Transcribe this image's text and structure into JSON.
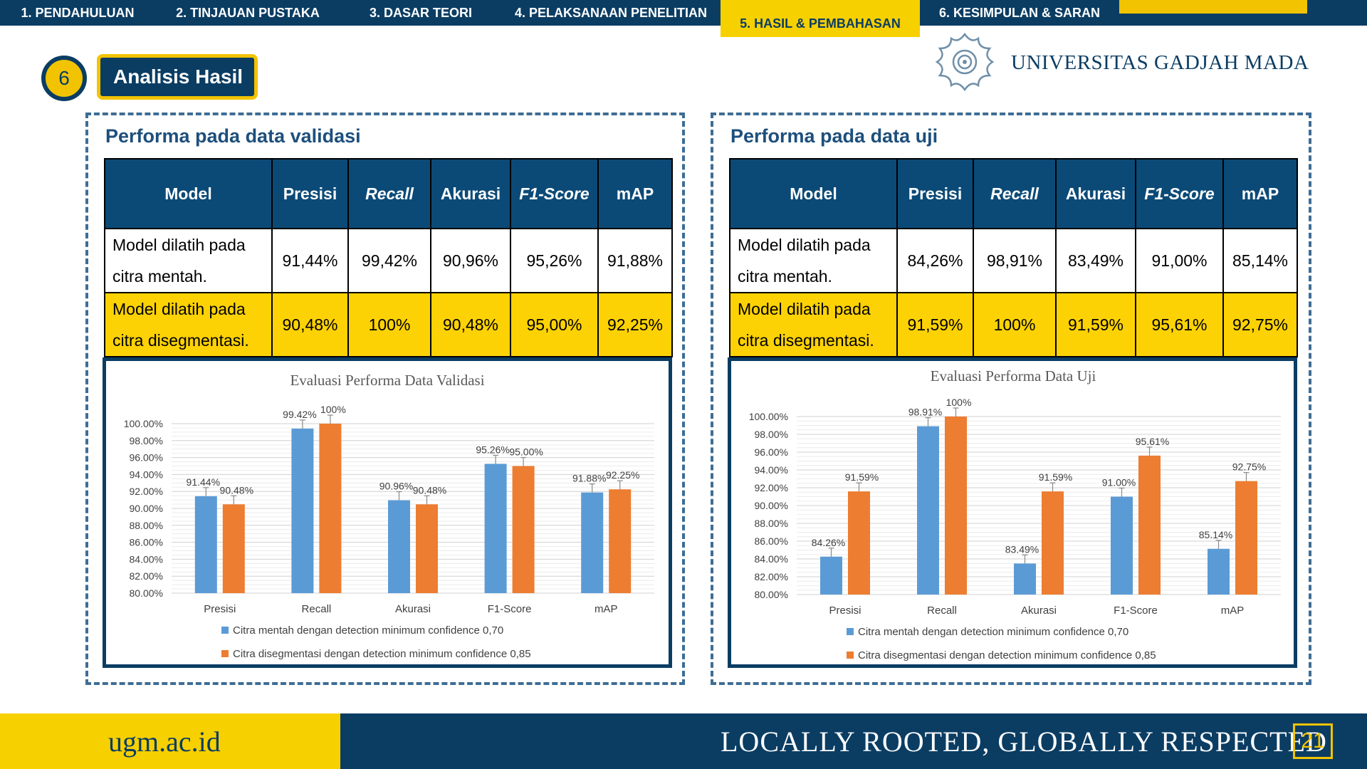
{
  "nav": {
    "tabs": [
      {
        "label": "1. PENDAHULUAN"
      },
      {
        "label": "2. TINJAUAN PUSTAKA"
      },
      {
        "label": "3. DASAR TEORI"
      },
      {
        "label": "4. PELAKSANAAN PENELITIAN"
      },
      {
        "label": "5. HASIL & PEMBAHASAN"
      },
      {
        "label": "6. KESIMPULAN & SARAN"
      }
    ],
    "active_index": 4
  },
  "section": {
    "number": "6",
    "title": "Analisis Hasil"
  },
  "logo": {
    "text": "UNIVERSITAS GADJAH MADA",
    "icon": "ugm-seal-icon"
  },
  "table_headers": [
    "Model",
    "Presisi",
    "Recall",
    "Akurasi",
    "F1-Score",
    "mAP"
  ],
  "validation": {
    "title": "Performa pada data validasi",
    "rows": [
      {
        "model_line1": "Model dilatih pada",
        "model_line2": "citra mentah.",
        "values": [
          "91,44%",
          "99,42%",
          "90,96%",
          "95,26%",
          "91,88%"
        ]
      },
      {
        "model_line1": "Model dilatih pada",
        "model_line2": "citra disegmentasi.",
        "values": [
          "90,48%",
          "100%",
          "90,48%",
          "95,00%",
          "92,25%"
        ]
      }
    ]
  },
  "test": {
    "title": "Performa pada data uji",
    "rows": [
      {
        "model_line1": "Model dilatih pada",
        "model_line2": "citra mentah.",
        "values": [
          "84,26%",
          "98,91%",
          "83,49%",
          "91,00%",
          "85,14%"
        ]
      },
      {
        "model_line1": "Model dilatih pada",
        "model_line2": "citra disegmentasi.",
        "values": [
          "91,59%",
          "100%",
          "91,59%",
          "95,61%",
          "92,75%"
        ]
      }
    ]
  },
  "chart_data": [
    {
      "type": "bar",
      "title": "Evaluasi Performa Data Validasi",
      "categories": [
        "Presisi",
        "Recall",
        "Akurasi",
        "F1-Score",
        "mAP"
      ],
      "series": [
        {
          "name": "Citra mentah dengan detection minimum confidence 0,70",
          "color": "#5b9bd5",
          "values": [
            91.44,
            99.42,
            90.96,
            95.26,
            91.88
          ],
          "labels": [
            "91.44%",
            "99.42%",
            "90.96%",
            "95.26%",
            "91.88%"
          ]
        },
        {
          "name": "Citra disegmentasi dengan detection minimum confidence 0,85",
          "color": "#ed7d31",
          "values": [
            90.48,
            100,
            90.48,
            95.0,
            92.25
          ],
          "labels": [
            "90.48%",
            "100%",
            "90.48%",
            "95.00%",
            "92.25%"
          ]
        }
      ],
      "ylim": [
        80,
        100
      ],
      "yticks": [
        "80.00%",
        "82.00%",
        "84.00%",
        "86.00%",
        "88.00%",
        "90.00%",
        "92.00%",
        "94.00%",
        "96.00%",
        "98.00%",
        "100.00%"
      ],
      "error_bars": true,
      "grid": true,
      "legend_position": "bottom"
    },
    {
      "type": "bar",
      "title": "Evaluasi Performa Data Uji",
      "categories": [
        "Presisi",
        "Recall",
        "Akurasi",
        "F1-Score",
        "mAP"
      ],
      "series": [
        {
          "name": "Citra mentah dengan detection minimum confidence 0,70",
          "color": "#5b9bd5",
          "values": [
            84.26,
            98.91,
            83.49,
            91.0,
            85.14
          ],
          "labels": [
            "84.26%",
            "98.91%",
            "83.49%",
            "91.00%",
            "85.14%"
          ]
        },
        {
          "name": "Citra disegmentasi dengan detection minimum confidence 0,85",
          "color": "#ed7d31",
          "values": [
            91.59,
            100,
            91.59,
            95.61,
            92.75
          ],
          "labels": [
            "91.59%",
            "100%",
            "91.59%",
            "95.61%",
            "92.75%"
          ]
        }
      ],
      "ylim": [
        80,
        100
      ],
      "yticks": [
        "80.00%",
        "82.00%",
        "84.00%",
        "86.00%",
        "88.00%",
        "90.00%",
        "92.00%",
        "94.00%",
        "96.00%",
        "98.00%",
        "100.00%"
      ],
      "error_bars": true,
      "grid": true,
      "legend_position": "bottom"
    }
  ],
  "footer": {
    "site": "ugm.ac.id",
    "tagline": "LOCALLY ROOTED, GLOBALLY RESPECTED",
    "page": "21"
  }
}
